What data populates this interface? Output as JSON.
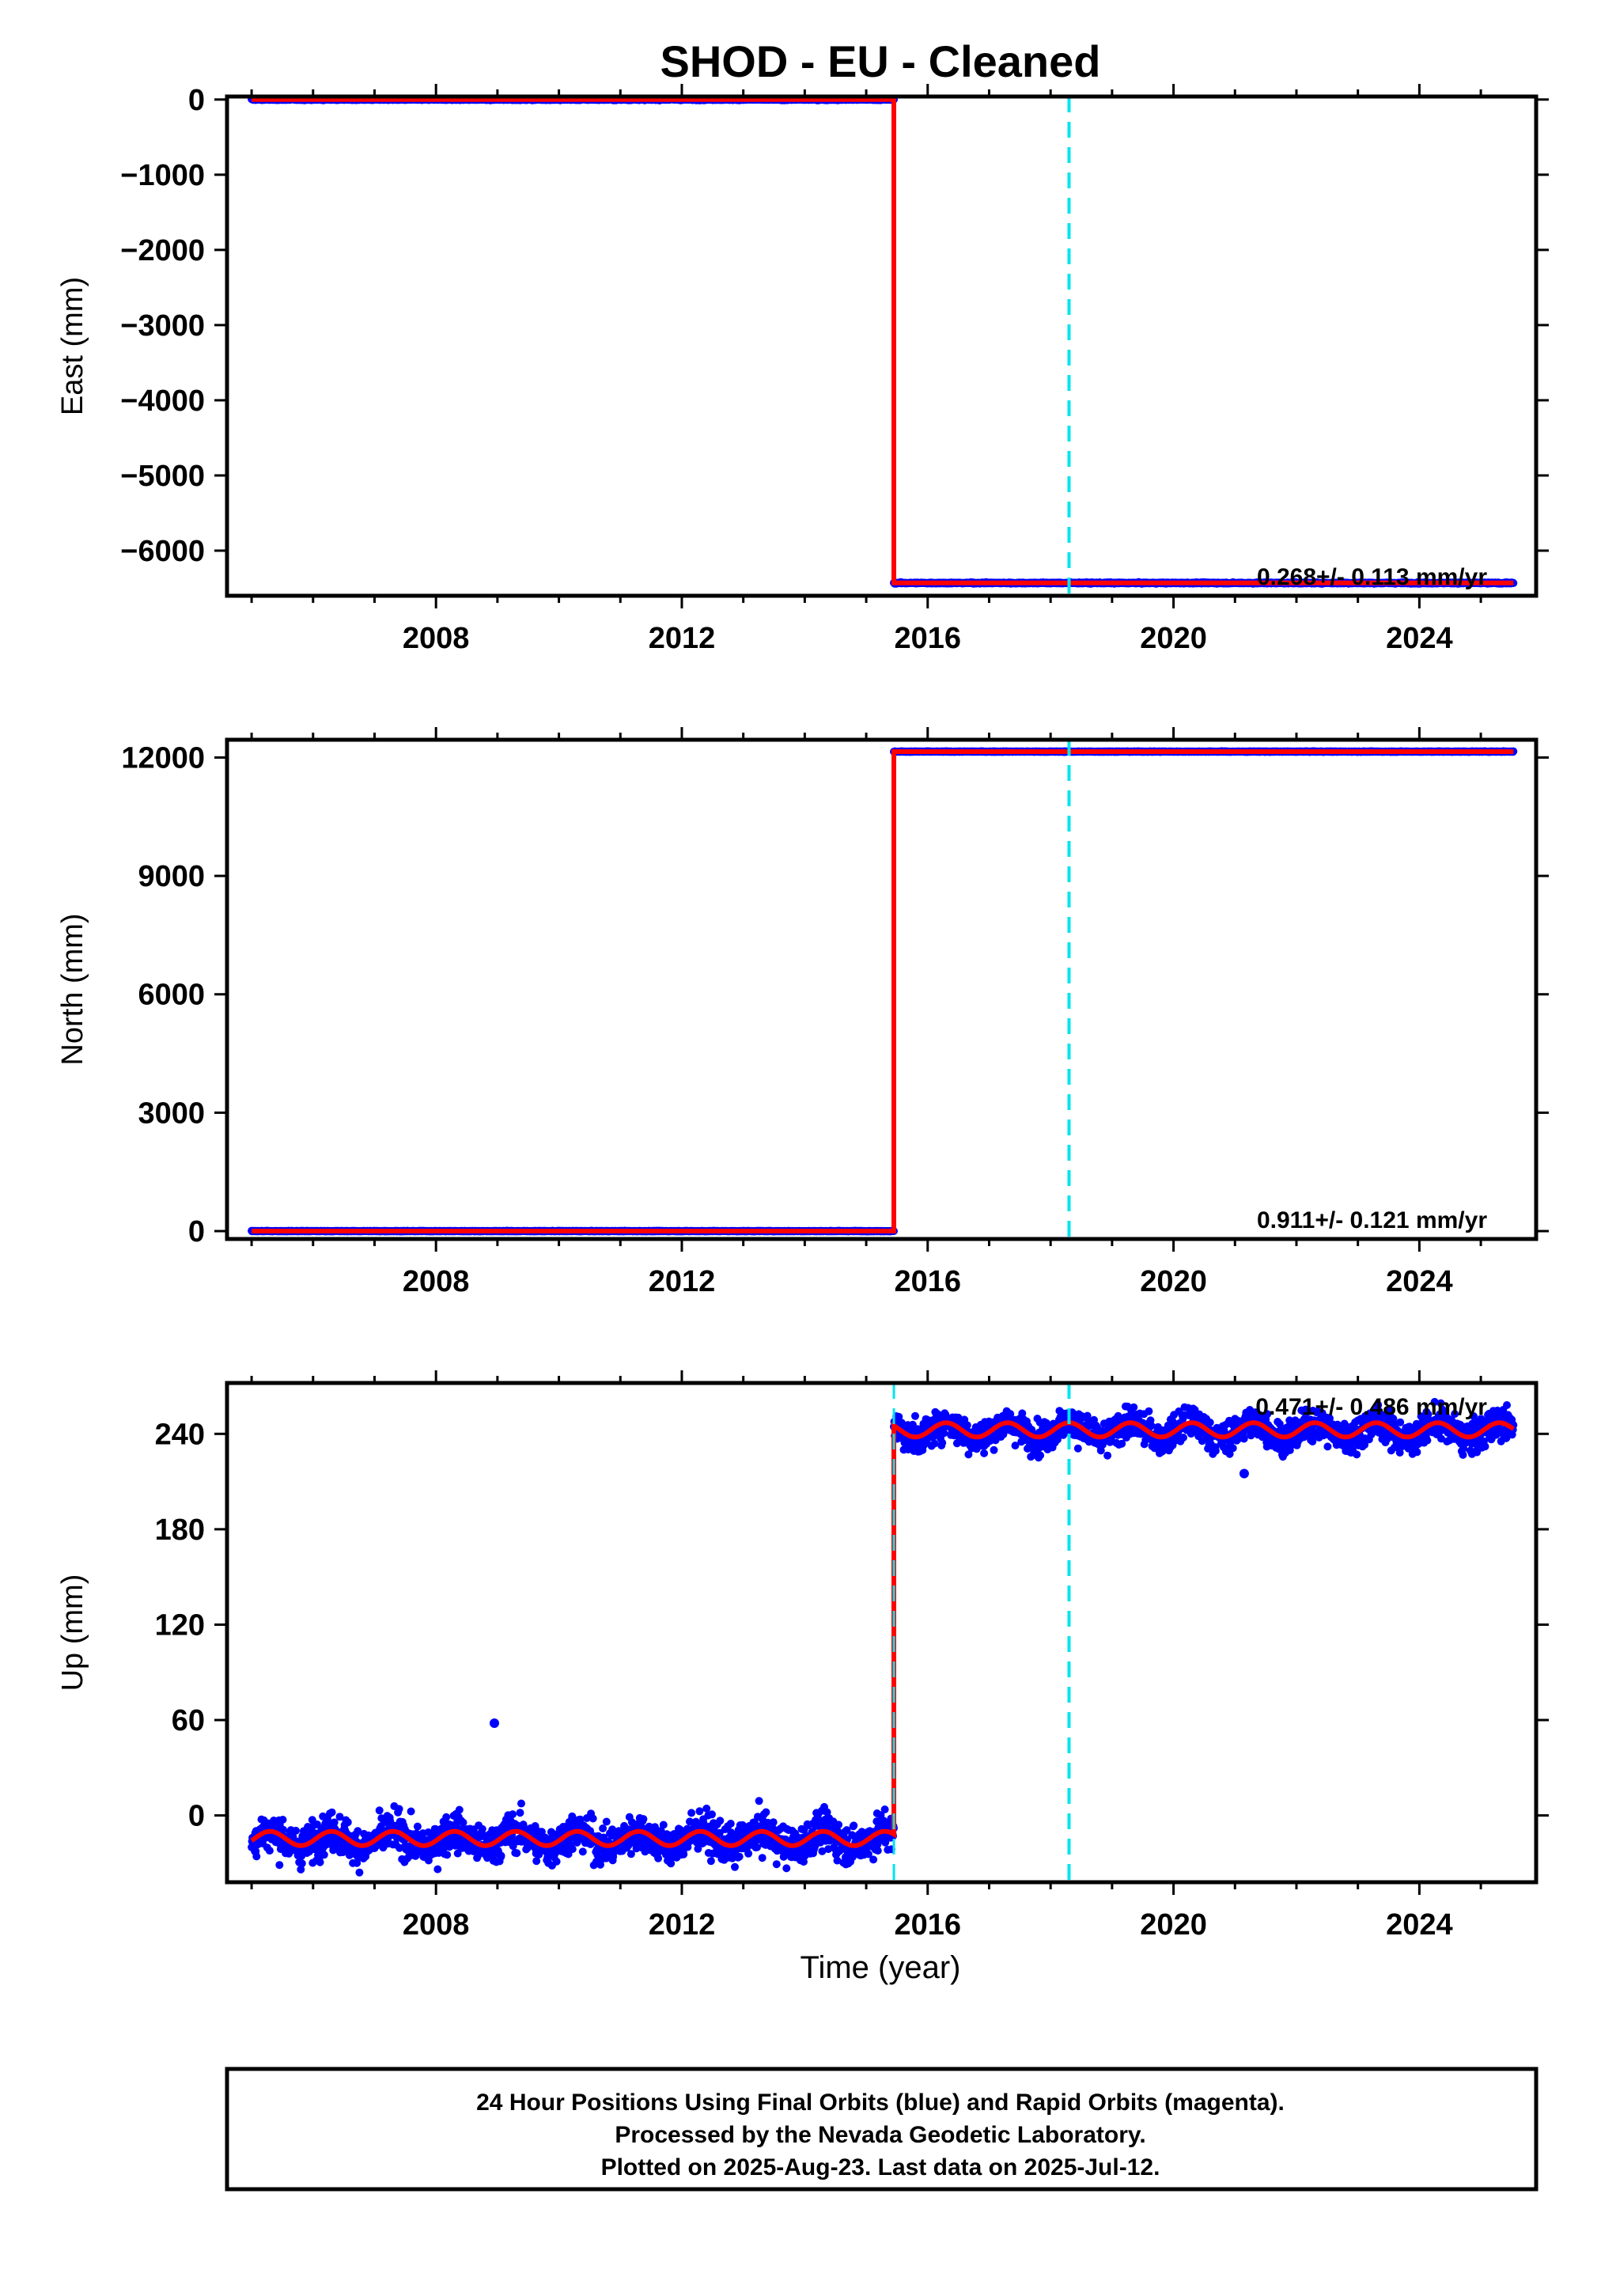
{
  "chart_data": {
    "title": "SHOD  - EU - Cleaned",
    "type": "scatter",
    "x_tick_labels": [
      "2008",
      "2012",
      "2016",
      "2020",
      "2024"
    ],
    "xlabel": "Time (year)",
    "xlim": [
      2004.6,
      2025.9
    ],
    "reference_line_years": [
      2018.3
    ],
    "colors": {
      "data": "#0000ff",
      "model": "#ff0000",
      "reference": "#00e5ee"
    },
    "panels": [
      {
        "ylabel": "East (mm)",
        "ylim": [
          -6600,
          40
        ],
        "y_ticks": [
          0,
          -1000,
          -2000,
          -3000,
          -4000,
          -5000,
          -6000
        ],
        "y_tick_labels": [
          "0",
          "−1000",
          "−2000",
          "−3000",
          "−4000",
          "−5000",
          "−6000"
        ],
        "rate_label": "0.268+/- 0.113 mm/yr",
        "series": [
          {
            "type": "scatter",
            "x_range": [
              2005.0,
              2015.45
            ],
            "approx_value": 0
          },
          {
            "type": "scatter",
            "x_range": [
              2015.45,
              2025.53
            ],
            "approx_value": -6430
          },
          {
            "type": "step_line",
            "x": [
              2005.0,
              2015.45,
              2015.45,
              2025.53
            ],
            "y": [
              0,
              0,
              -6430,
              -6430
            ]
          }
        ]
      },
      {
        "ylabel": "North (mm)",
        "ylim": [
          -200,
          12450
        ],
        "y_ticks": [
          0,
          3000,
          6000,
          9000,
          12000
        ],
        "y_tick_labels": [
          "0",
          "3000",
          "6000",
          "9000",
          "12000"
        ],
        "rate_label": "0.911+/- 0.121 mm/yr",
        "series": [
          {
            "type": "scatter",
            "x_range": [
              2005.0,
              2015.45
            ],
            "approx_value": 0
          },
          {
            "type": "scatter",
            "x_range": [
              2015.45,
              2025.53
            ],
            "approx_value": 12150
          },
          {
            "type": "step_line",
            "x": [
              2005.0,
              2015.45,
              2015.45,
              2025.53
            ],
            "y": [
              0,
              0,
              12150,
              12150
            ]
          }
        ]
      },
      {
        "ylabel": "Up (mm)",
        "ylim": [
          -42,
          272
        ],
        "y_ticks": [
          0,
          60,
          120,
          180,
          240
        ],
        "y_tick_labels": [
          "0",
          "60",
          "120",
          "180",
          "240"
        ],
        "rate_label": "0.471+/- 0.486 mm/yr",
        "series": [
          {
            "type": "scatter",
            "x_range": [
              2005.0,
              2015.45
            ],
            "approx_mean": -15,
            "seasonal_amplitude": 5,
            "noise": 6
          },
          {
            "type": "scatter",
            "x_range": [
              2015.45,
              2025.53
            ],
            "approx_mean": 242,
            "seasonal_amplitude": 5,
            "noise": 5
          },
          {
            "type": "outlier",
            "x": 2008.95,
            "y": 58
          },
          {
            "type": "outlier",
            "x": 2021.15,
            "y": 215
          },
          {
            "type": "seasonal_model",
            "segments": [
              {
                "x_range": [
                  2005.0,
                  2015.45
                ],
                "offset": -14.5,
                "amplitude": 4.5
              },
              {
                "x_range": [
                  2015.45,
                  2025.53
                ],
                "offset": 242.5,
                "amplitude": 4.5
              }
            ]
          }
        ]
      }
    ]
  },
  "footer": {
    "line1": "24 Hour Positions Using Final Orbits (blue) and Rapid Orbits (magenta).",
    "line2": "Processed by the Nevada Geodetic Laboratory.",
    "line3": "Plotted on 2025-Aug-23. Last data on 2025-Jul-12."
  }
}
